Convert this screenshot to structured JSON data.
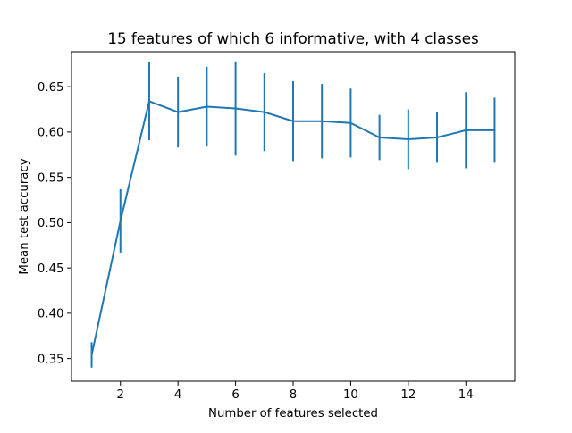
{
  "chart_data": {
    "type": "line",
    "title": "15 features of which 6 informative, with 4 classes",
    "xlabel": "Number of features selected",
    "ylabel": "Mean test accuracy",
    "xlim": [
      0.3,
      15.7
    ],
    "ylim": [
      0.325,
      0.6886
    ],
    "grid": false,
    "x_ticks": [
      2,
      4,
      6,
      8,
      10,
      12,
      14
    ],
    "x_tick_labels": [
      "2",
      "4",
      "6",
      "8",
      "10",
      "12",
      "14"
    ],
    "y_ticks": [
      0.35,
      0.4,
      0.45,
      0.5,
      0.55,
      0.6,
      0.65
    ],
    "y_tick_labels": [
      "0.35",
      "0.40",
      "0.45",
      "0.50",
      "0.55",
      "0.60",
      "0.65"
    ],
    "series": [
      {
        "name": "mean test accuracy",
        "color": "#1f77b4",
        "x": [
          1,
          2,
          3,
          4,
          5,
          6,
          7,
          8,
          9,
          10,
          11,
          12,
          13,
          14,
          15
        ],
        "y": [
          0.354,
          0.502,
          0.634,
          0.622,
          0.628,
          0.626,
          0.622,
          0.612,
          0.612,
          0.61,
          0.594,
          0.592,
          0.594,
          0.602,
          0.602
        ],
        "yerr": [
          0.014,
          0.035,
          0.043,
          0.039,
          0.044,
          0.052,
          0.043,
          0.044,
          0.041,
          0.038,
          0.025,
          0.033,
          0.028,
          0.042,
          0.036
        ]
      }
    ]
  }
}
